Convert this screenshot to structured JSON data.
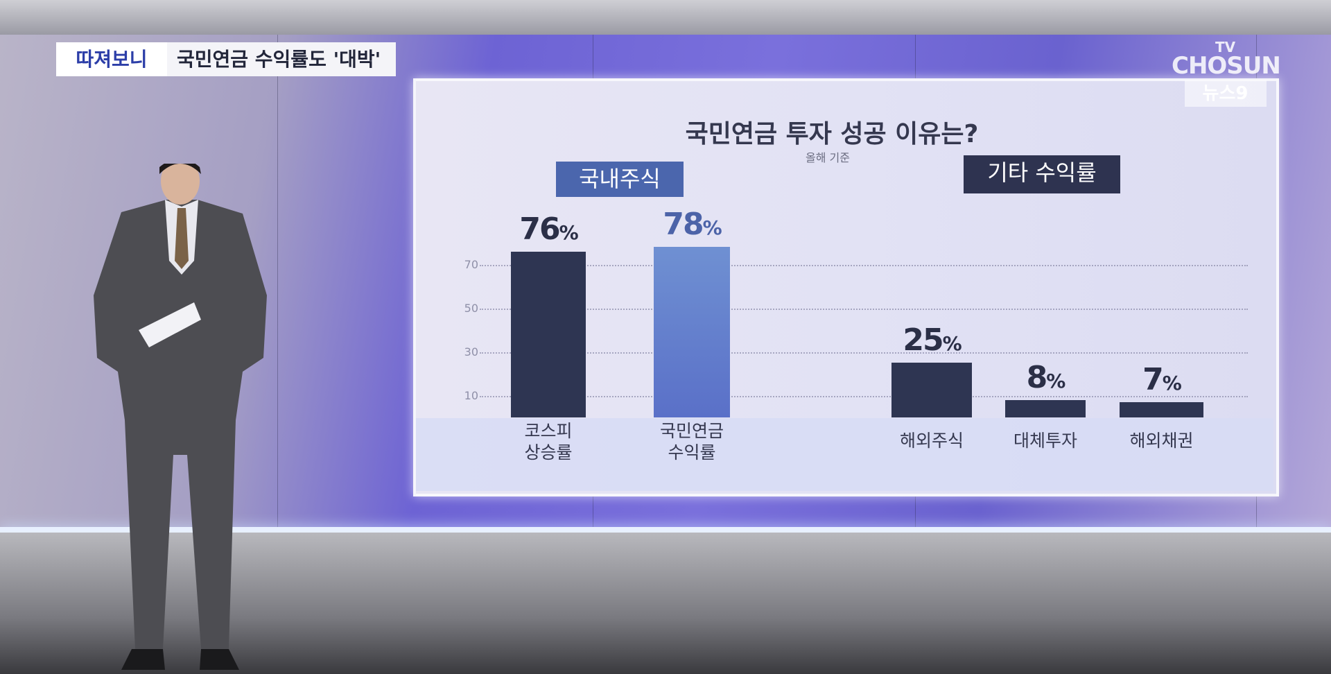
{
  "banner": {
    "logo_text": "따져보니",
    "headline": "국민연금 수익률도 '대박'"
  },
  "broadcaster": {
    "line1": "TV",
    "line2": "CHOSUN",
    "program": "뉴스9"
  },
  "colors": {
    "dark_bar": "#2e3552",
    "blue_bar": "#5f7bcc",
    "group_domestic": "#4b66ad",
    "group_other": "#2e3350"
  },
  "chart_data": {
    "type": "bar",
    "title": "국민연금 투자 성공 이유는?",
    "subtitle": "올해 기준",
    "ylim": [
      0,
      80
    ],
    "yticks": [
      70,
      50,
      30,
      10
    ],
    "grid": true,
    "groups": [
      {
        "label": "국내주식",
        "categories": [
          [
            "코스피",
            "상승률"
          ],
          [
            "국민연금",
            "수익률"
          ]
        ],
        "values": [
          76,
          78
        ],
        "colors": [
          "#2e3552",
          "#5f7bcc"
        ]
      },
      {
        "label": "기타 수익률",
        "categories": [
          [
            "해외주식"
          ],
          [
            "대체투자"
          ],
          [
            "해외채권"
          ]
        ],
        "values": [
          25,
          8,
          7
        ],
        "colors": [
          "#2e3552",
          "#2e3552",
          "#2e3552"
        ]
      }
    ],
    "unit": "%"
  }
}
